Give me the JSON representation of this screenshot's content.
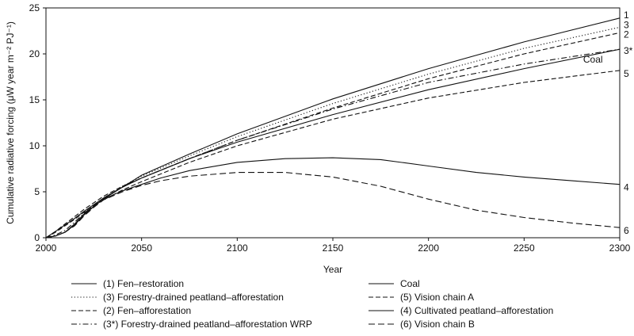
{
  "chart_data": {
    "type": "line",
    "xlabel": "Year",
    "ylabel": "Cumulative radiative forcing (μW year m⁻² PJ⁻¹)",
    "xlim": [
      2000,
      2300
    ],
    "ylim": [
      0,
      25
    ],
    "xticks": [
      2000,
      2050,
      2100,
      2150,
      2200,
      2250,
      2300
    ],
    "yticks": [
      0,
      5,
      10,
      15,
      20,
      25
    ],
    "grid": false,
    "legend_position": "bottom",
    "series": [
      {
        "name": "(1) Fen–restoration",
        "end_label": "1",
        "style": "solid",
        "x": [
          2000,
          2005,
          2010,
          2015,
          2020,
          2030,
          2040,
          2050,
          2075,
          2100,
          2150,
          2200,
          2250,
          2300
        ],
        "y": [
          0,
          0.2,
          0.6,
          1.5,
          2.6,
          4.2,
          5.5,
          6.8,
          9.1,
          11.3,
          15.1,
          18.4,
          21.3,
          23.9
        ]
      },
      {
        "name": "(3) Forestry-drained peatland–afforestation",
        "end_label": "3",
        "style": "dotted",
        "x": [
          2000,
          2005,
          2010,
          2015,
          2020,
          2030,
          2040,
          2050,
          2075,
          2100,
          2150,
          2200,
          2250,
          2300
        ],
        "y": [
          0,
          0.2,
          0.6,
          1.5,
          2.6,
          4.3,
          5.6,
          6.7,
          8.9,
          11.0,
          14.6,
          17.8,
          20.6,
          22.9
        ]
      },
      {
        "name": "(2) Fen–afforestation",
        "end_label": "2",
        "style": "dashed",
        "x": [
          2000,
          2005,
          2010,
          2015,
          2020,
          2030,
          2040,
          2050,
          2075,
          2100,
          2150,
          2200,
          2250,
          2300
        ],
        "y": [
          0,
          0.7,
          1.5,
          2.3,
          3.1,
          4.5,
          5.6,
          6.5,
          8.6,
          10.6,
          14.1,
          17.3,
          20.0,
          22.3
        ]
      },
      {
        "name": "(3*) Forestry-drained peatland–afforestation WRP",
        "end_label": "3*",
        "style": "dashdot",
        "x": [
          2000,
          2005,
          2010,
          2015,
          2020,
          2030,
          2040,
          2050,
          2075,
          2100,
          2150,
          2200,
          2250,
          2300
        ],
        "y": [
          0,
          0.3,
          0.8,
          1.7,
          2.7,
          4.3,
          5.5,
          6.5,
          8.6,
          10.6,
          14.0,
          16.9,
          18.9,
          20.5
        ]
      },
      {
        "name": "Coal",
        "end_label": "Coal",
        "style": "solid",
        "x": [
          2000,
          2005,
          2010,
          2015,
          2020,
          2030,
          2040,
          2050,
          2075,
          2100,
          2150,
          2200,
          2250,
          2300
        ],
        "y": [
          0,
          0.7,
          1.4,
          2.1,
          2.9,
          4.3,
          5.5,
          6.5,
          8.6,
          10.4,
          13.4,
          16.1,
          18.4,
          20.5
        ]
      },
      {
        "name": "(5) Vision chain A",
        "end_label": "5",
        "style": "dashed",
        "x": [
          2000,
          2005,
          2010,
          2015,
          2020,
          2030,
          2040,
          2050,
          2075,
          2100,
          2150,
          2200,
          2250,
          2300
        ],
        "y": [
          0,
          0.6,
          1.3,
          2.0,
          2.8,
          4.1,
          5.2,
          6.1,
          8.2,
          10.0,
          12.9,
          15.2,
          16.9,
          18.2
        ]
      },
      {
        "name": "(4) Cultivated peatland–afforestation",
        "end_label": "4",
        "style": "solid",
        "x": [
          2000,
          2005,
          2010,
          2015,
          2020,
          2025,
          2030,
          2040,
          2050,
          2060,
          2075,
          2100,
          2125,
          2150,
          2175,
          2200,
          2225,
          2250,
          2275,
          2300
        ],
        "y": [
          0,
          0.2,
          0.6,
          1.4,
          2.5,
          3.4,
          4.2,
          5.1,
          5.8,
          6.5,
          7.3,
          8.2,
          8.6,
          8.7,
          8.5,
          7.8,
          7.1,
          6.6,
          6.2,
          5.8
        ]
      },
      {
        "name": "(6) Vision chain B",
        "end_label": "6",
        "style": "longdash",
        "x": [
          2000,
          2005,
          2010,
          2015,
          2020,
          2025,
          2030,
          2040,
          2050,
          2060,
          2075,
          2100,
          2125,
          2150,
          2175,
          2200,
          2225,
          2250,
          2275,
          2300
        ],
        "y": [
          0,
          0.2,
          0.6,
          1.3,
          2.4,
          3.3,
          4.1,
          5.0,
          5.7,
          6.2,
          6.7,
          7.1,
          7.1,
          6.6,
          5.6,
          4.2,
          3.0,
          2.2,
          1.6,
          1.1
        ]
      }
    ],
    "legend_columns": [
      [
        "(1) Fen–restoration",
        "(3) Forestry-drained peatland–afforestation",
        "(2) Fen–afforestation",
        "(3*) Forestry-drained peatland–afforestation WRP"
      ],
      [
        "Coal",
        "(5) Vision chain A",
        "(4) Cultivated peatland–afforestation",
        "(6) Vision chain B"
      ]
    ]
  }
}
